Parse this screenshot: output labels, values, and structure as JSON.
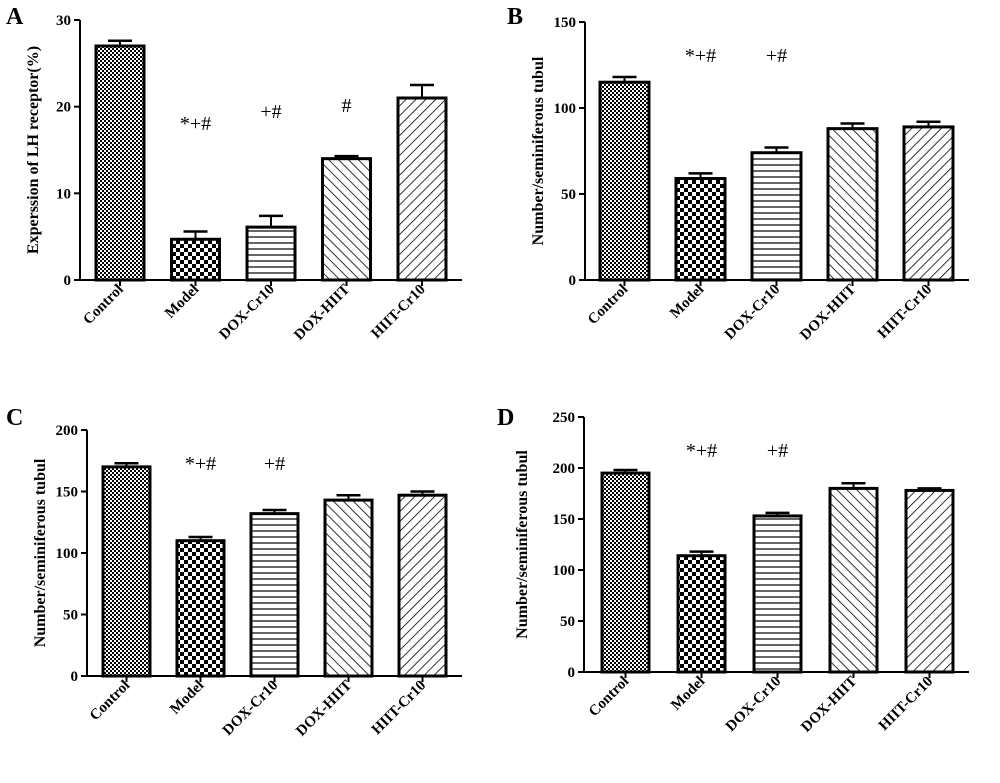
{
  "chart_data": [
    {
      "panel": "A",
      "type": "bar",
      "ylabel": "Experssion of LH receptor(%)",
      "categories": [
        "Control",
        "Model",
        "DOX-Cr10",
        "DOX-HIIT",
        "HIIT-Cr10"
      ],
      "values": [
        27,
        4.7,
        6.1,
        14,
        21
      ],
      "errors": [
        0.6,
        0.9,
        1.3,
        0.3,
        1.5
      ],
      "annotations": [
        "",
        "*+#",
        "+#",
        "#",
        ""
      ],
      "ylim": [
        0,
        30
      ],
      "yticks": [
        0,
        10,
        20,
        30
      ]
    },
    {
      "panel": "B",
      "type": "bar",
      "ylabel": "Number/seminiferous tubul",
      "categories": [
        "Control",
        "Model",
        "DOX-Cr10",
        "DOX-HIIT",
        "HIIT-Cr10"
      ],
      "values": [
        115,
        59,
        74,
        88,
        89
      ],
      "errors": [
        3,
        3,
        3,
        3,
        3
      ],
      "annotations": [
        "",
        "*+#",
        "+#",
        "",
        ""
      ],
      "ylim": [
        0,
        150
      ],
      "yticks": [
        0,
        50,
        100,
        150
      ]
    },
    {
      "panel": "C",
      "type": "bar",
      "ylabel": "Number/seminiferous tubul",
      "categories": [
        "Control",
        "Model",
        "DOX-Cr10",
        "DOX-HIIT",
        "HIIT-Cr10"
      ],
      "values": [
        170,
        110,
        132,
        143,
        147
      ],
      "errors": [
        3,
        3,
        3,
        4,
        3
      ],
      "annotations": [
        "",
        "*+#",
        "+#",
        "",
        ""
      ],
      "ylim": [
        0,
        200
      ],
      "yticks": [
        0,
        50,
        100,
        150,
        200
      ]
    },
    {
      "panel": "D",
      "type": "bar",
      "ylabel": "Number/seminiferous tubul",
      "categories": [
        "Control",
        "Model",
        "DOX-Cr10",
        "DOX-HIIT",
        "HIIT-Cr10"
      ],
      "values": [
        195,
        114,
        153,
        180,
        178
      ],
      "errors": [
        3,
        4,
        3,
        5,
        2
      ],
      "annotations": [
        "",
        "*+#",
        "+#",
        "",
        ""
      ],
      "ylim": [
        0,
        250
      ],
      "yticks": [
        0,
        50,
        100,
        150,
        200,
        250
      ]
    }
  ]
}
